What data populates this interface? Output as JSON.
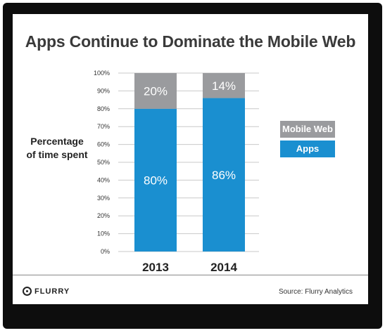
{
  "colors": {
    "mobile_web": "#9a9b9e",
    "apps": "#1a8fd0"
  },
  "chart_data": {
    "type": "bar",
    "stacked": true,
    "title": "Apps Continue to Dominate the Mobile Web",
    "ylabel": "Percentage of time spent",
    "ylabel_lines": [
      "Percentage",
      "of time spent"
    ],
    "xlabel": "",
    "categories": [
      "2013",
      "2014"
    ],
    "series": [
      {
        "name": "Apps",
        "values": [
          80,
          86
        ],
        "labels": [
          "80%",
          "86%"
        ]
      },
      {
        "name": "Mobile Web",
        "values": [
          20,
          14
        ],
        "labels": [
          "20%",
          "14%"
        ]
      }
    ],
    "ylim": [
      0,
      100
    ],
    "yticks": [
      "0%",
      "10%",
      "20%",
      "30%",
      "40%",
      "50%",
      "60%",
      "70%",
      "80%",
      "90%",
      "100%"
    ],
    "grid": true,
    "legend": [
      "Mobile Web",
      "Apps"
    ],
    "legend_position": "right"
  },
  "footer": {
    "logo_text": "FLURRY",
    "source": "Source: Flurry Analytics"
  }
}
